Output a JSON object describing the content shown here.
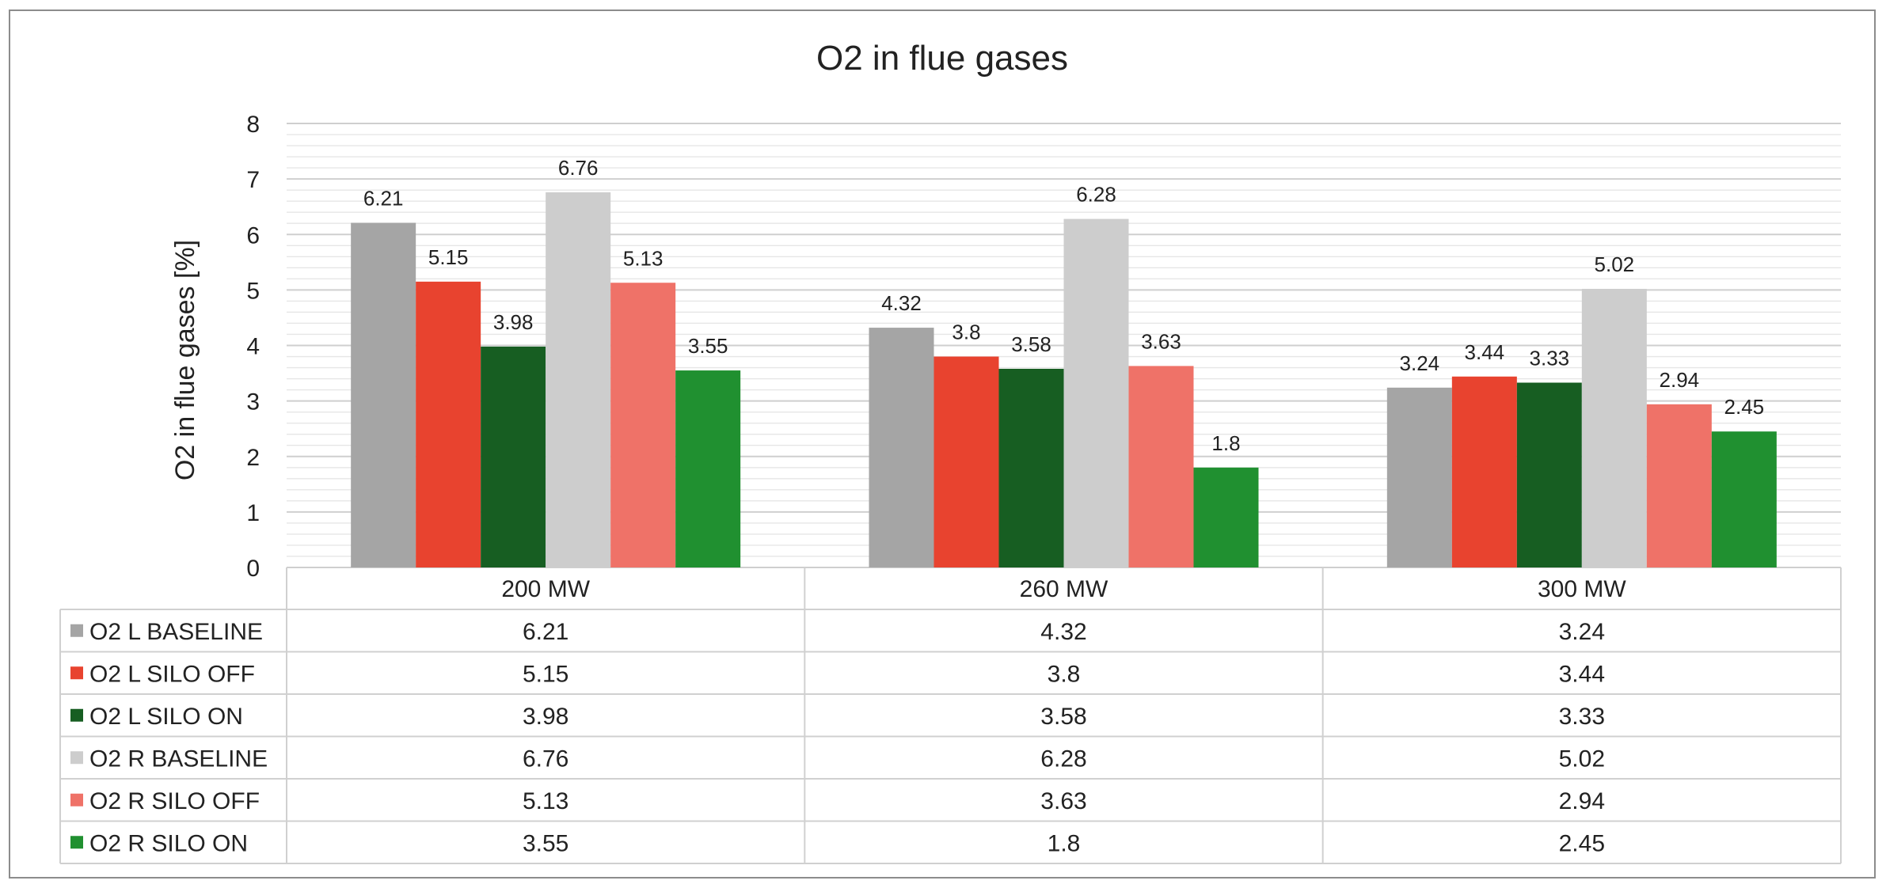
{
  "chart_data": {
    "type": "bar",
    "title": "O2 in flue gases",
    "ylabel": "O2 in flue gases [%]",
    "xlabel": "",
    "ylim": [
      0,
      8
    ],
    "yticks": [
      "0",
      "1",
      "2",
      "3",
      "4",
      "5",
      "6",
      "7",
      "8"
    ],
    "grid": true,
    "legend": "data-table",
    "categories": [
      "200 MW",
      "260 MW",
      "300 MW"
    ],
    "series": [
      {
        "name": "O2 L BASELINE",
        "color": "#a5a5a5",
        "values": [
          6.21,
          4.32,
          3.24
        ],
        "labels": [
          "6.21",
          "4.32",
          "3.24"
        ]
      },
      {
        "name": "O2 L SILO OFF",
        "color": "#e8432f",
        "values": [
          5.15,
          3.8,
          3.44
        ],
        "labels": [
          "5.15",
          "3.8",
          "3.44"
        ]
      },
      {
        "name": "O2 L  SILO ON",
        "color": "#175e22",
        "values": [
          3.98,
          3.58,
          3.33
        ],
        "labels": [
          "3.98",
          "3.58",
          "3.33"
        ]
      },
      {
        "name": "O2 R BASELINE",
        "color": "#cdcdcd",
        "values": [
          6.76,
          6.28,
          5.02
        ],
        "labels": [
          "6.76",
          "6.28",
          "5.02"
        ]
      },
      {
        "name": "O2 R SILO OFF",
        "color": "#ef7268",
        "values": [
          5.13,
          3.63,
          2.94
        ],
        "labels": [
          "5.13",
          "3.63",
          "2.94"
        ]
      },
      {
        "name": "O2 R SILO ON",
        "color": "#209030",
        "values": [
          3.55,
          1.8,
          2.45
        ],
        "labels": [
          "3.55",
          "1.8",
          "2.45"
        ]
      }
    ]
  }
}
